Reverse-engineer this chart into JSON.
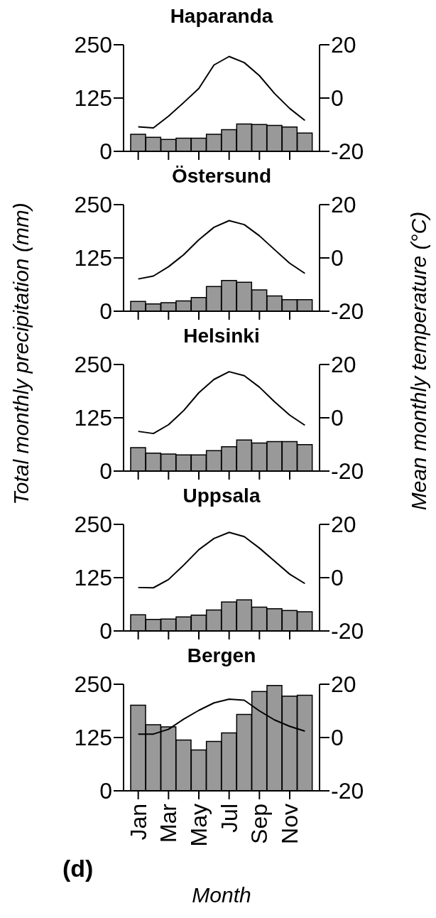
{
  "chart_data": [
    {
      "type": "bar",
      "title": "Haparanda",
      "categories": [
        null,
        null,
        null,
        null,
        null,
        null,
        null,
        null,
        null,
        null,
        null,
        null
      ],
      "series": [
        {
          "color": "#999999",
          "values": [
            40,
            33,
            28,
            31,
            31,
            40,
            51,
            64,
            63,
            61,
            57,
            43
          ]
        },
        {
          "type": "line",
          "axis": "y2",
          "color": "#000000",
          "values": [
            -10.8,
            -11.2,
            -6.8,
            -1.7,
            3.6,
            12.4,
            15.6,
            13.3,
            8.4,
            1.7,
            -3.9,
            -8.4
          ]
        }
      ],
      "ylim": [
        0,
        250
      ],
      "yticks": [
        0,
        125,
        250
      ],
      "y2lim": [
        -20,
        20
      ],
      "y2ticks": [
        -20,
        0,
        20
      ],
      "marker": "none",
      "tick_labels": "y"
    },
    {
      "type": "bar",
      "title": "Östersund",
      "categories": [
        null,
        null,
        null,
        null,
        null,
        null,
        null,
        null,
        null,
        null,
        null,
        null
      ],
      "series": [
        {
          "color": "#999999",
          "values": [
            23,
            17,
            20,
            24,
            32,
            58,
            72,
            68,
            50,
            36,
            27,
            27
          ]
        },
        {
          "type": "line",
          "axis": "y2",
          "color": "#000000",
          "values": [
            -7.9,
            -6.8,
            -3.3,
            1.2,
            6.8,
            11.5,
            14,
            12.5,
            8.3,
            3.1,
            -2,
            -5.8
          ]
        }
      ],
      "ylim": [
        0,
        250
      ],
      "yticks": [
        0,
        125,
        250
      ],
      "y2lim": [
        -20,
        20
      ],
      "y2ticks": [
        -20,
        0,
        20
      ],
      "marker": "none",
      "tick_labels": "y"
    },
    {
      "type": "bar",
      "title": "Helsinki",
      "ylabel": "Total monthly precipitation (mm)",
      "y2label": "Mean monthly temperature (°C)",
      "categories": [
        null,
        null,
        null,
        null,
        null,
        null,
        null,
        null,
        null,
        null,
        null,
        null
      ],
      "series": [
        {
          "color": "#999999",
          "values": [
            55,
            42,
            40,
            38,
            38,
            48,
            57,
            73,
            66,
            69,
            69,
            62
          ]
        },
        {
          "type": "line",
          "axis": "y2",
          "color": "#000000",
          "values": [
            -5.1,
            -5.9,
            -2.6,
            2.7,
            9.4,
            14.4,
            17.3,
            15.8,
            11.5,
            6,
            1,
            -2.8
          ]
        }
      ],
      "ylim": [
        0,
        250
      ],
      "yticks": [
        0,
        125,
        250
      ],
      "y2lim": [
        -20,
        20
      ],
      "y2ticks": [
        -20,
        0,
        20
      ],
      "marker": "none",
      "tick_labels": "y"
    },
    {
      "type": "bar",
      "title": "Uppsala",
      "categories": [
        null,
        null,
        null,
        null,
        null,
        null,
        null,
        null,
        null,
        null,
        null,
        null
      ],
      "series": [
        {
          "color": "#999999",
          "values": [
            38,
            27,
            28,
            33,
            37,
            49,
            68,
            73,
            56,
            52,
            48,
            45
          ]
        },
        {
          "type": "line",
          "axis": "y2",
          "color": "#000000",
          "values": [
            -3.7,
            -3.8,
            -0.7,
            4.7,
            10.5,
            14.7,
            17,
            15.4,
            11.1,
            6.2,
            1.3,
            -2.2
          ]
        }
      ],
      "ylim": [
        0,
        250
      ],
      "yticks": [
        0,
        125,
        250
      ],
      "y2lim": [
        -20,
        20
      ],
      "y2ticks": [
        -20,
        0,
        20
      ],
      "marker": "none",
      "tick_labels": "y"
    },
    {
      "type": "bar",
      "title": "Bergen",
      "xlabel": "Month",
      "annotations": [
        "(d)"
      ],
      "categories": [
        "Jan",
        null,
        "Mar",
        null,
        "May",
        null,
        "Jul",
        null,
        "Sep",
        null,
        "Nov",
        null
      ],
      "series": [
        {
          "color": "#999999",
          "values": [
            201,
            155,
            150,
            119,
            96,
            116,
            136,
            179,
            233,
            247,
            222,
            224
          ]
        },
        {
          "type": "line",
          "axis": "y2",
          "color": "#000000",
          "values": [
            1.3,
            1.3,
            3.1,
            6.9,
            10.2,
            13,
            14.4,
            14,
            10,
            6.6,
            4.2,
            2.4
          ]
        }
      ],
      "ylim": [
        0,
        250
      ],
      "yticks": [
        0,
        125,
        250
      ],
      "y2lim": [
        -20,
        20
      ],
      "y2ticks": [
        -20,
        0,
        20
      ],
      "marker": "none"
    }
  ]
}
